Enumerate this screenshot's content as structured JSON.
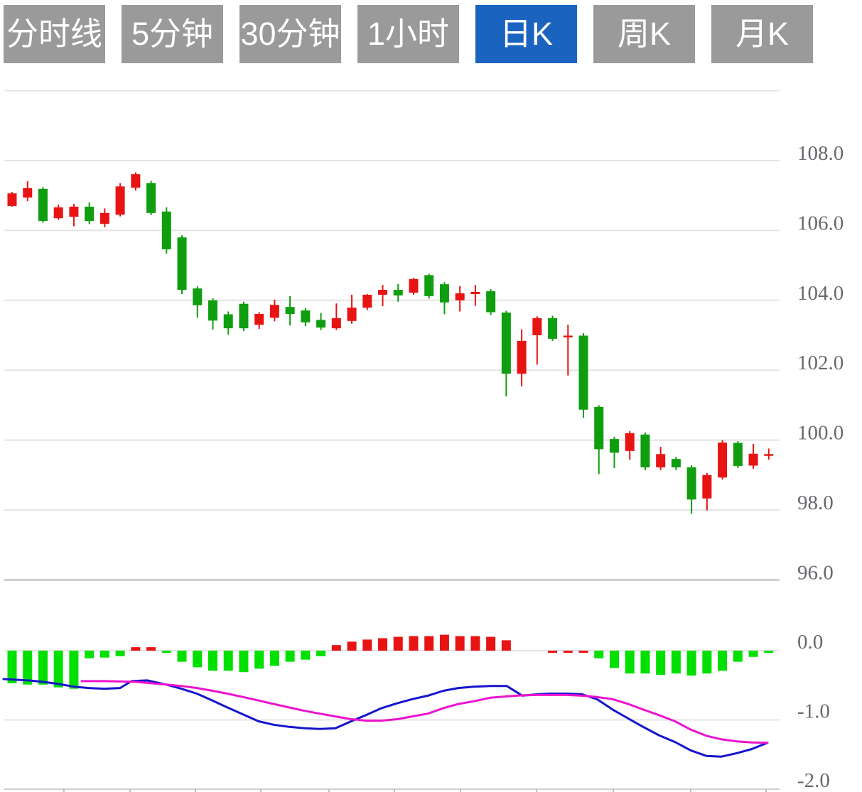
{
  "toolbar": {
    "inactive_color": "#9a9a9a",
    "active_color": "#1a64c0",
    "text_color": "#ffffff",
    "buttons": [
      {
        "label": "分时线",
        "active": false
      },
      {
        "label": "5分钟",
        "active": false
      },
      {
        "label": "30分钟",
        "active": false
      },
      {
        "label": "1小时",
        "active": false
      },
      {
        "label": "日K",
        "active": true
      },
      {
        "label": "周K",
        "active": false
      },
      {
        "label": "月K",
        "active": false
      }
    ]
  },
  "chart_data": {
    "type": "candlestick+macd",
    "legend_position": "none",
    "grid": true,
    "colors": {
      "up_red": "#e81414",
      "down_green": "#0f9e0f",
      "macd_green": "#00e000",
      "macd_red": "#e81414",
      "dif_blue": "#1414cc",
      "dea_magenta": "#ec13cf",
      "grid": "#e4e4e4",
      "grid_strong": "#cfcfcf",
      "label": "#68686e"
    },
    "price_panel": {
      "ylim": [
        96.0,
        110.0
      ],
      "gridline_prices": [
        110,
        108,
        106,
        104,
        102,
        100,
        98,
        96
      ],
      "ylabels": [
        {
          "text": "108.0",
          "price": 108
        },
        {
          "text": "106.0",
          "price": 106
        },
        {
          "text": "104.0",
          "price": 104
        },
        {
          "text": "102.0",
          "price": 102
        },
        {
          "text": "100.0",
          "price": 100
        },
        {
          "text": "98.0",
          "price": 98
        },
        {
          "text": "96.0",
          "price": 96
        }
      ],
      "candles_ohlc": [
        [
          106.7,
          107.1,
          106.68,
          107.06
        ],
        [
          106.94,
          107.41,
          106.84,
          107.21
        ],
        [
          107.19,
          107.24,
          106.22,
          106.27
        ],
        [
          106.35,
          106.74,
          106.3,
          106.66
        ],
        [
          106.39,
          106.76,
          106.12,
          106.68
        ],
        [
          106.68,
          106.8,
          106.18,
          106.27
        ],
        [
          106.19,
          106.63,
          106.09,
          106.5
        ],
        [
          106.45,
          107.35,
          106.4,
          107.26
        ],
        [
          107.22,
          107.66,
          107.14,
          107.61
        ],
        [
          107.35,
          107.42,
          106.44,
          106.5
        ],
        [
          106.54,
          106.66,
          105.34,
          105.46
        ],
        [
          105.8,
          105.86,
          104.18,
          104.3
        ],
        [
          104.34,
          104.4,
          103.5,
          103.86
        ],
        [
          104.0,
          104.06,
          103.16,
          103.42
        ],
        [
          103.6,
          103.68,
          103.02,
          103.2
        ],
        [
          103.9,
          103.96,
          103.12,
          103.2
        ],
        [
          103.3,
          103.66,
          103.18,
          103.61
        ],
        [
          103.5,
          104.02,
          103.4,
          103.87
        ],
        [
          103.81,
          104.12,
          103.28,
          103.61
        ],
        [
          103.71,
          103.78,
          103.26,
          103.37
        ],
        [
          103.44,
          103.64,
          103.15,
          103.22
        ],
        [
          103.2,
          103.91,
          103.15,
          103.49
        ],
        [
          103.41,
          104.16,
          103.33,
          103.79
        ],
        [
          103.79,
          104.18,
          103.72,
          104.16
        ],
        [
          104.16,
          104.44,
          103.83,
          104.3
        ],
        [
          104.3,
          104.47,
          103.96,
          104.14
        ],
        [
          104.22,
          104.64,
          104.16,
          104.61
        ],
        [
          104.72,
          104.76,
          104.05,
          104.12
        ],
        [
          104.46,
          104.52,
          103.6,
          103.94
        ],
        [
          104.0,
          104.41,
          103.68,
          104.2
        ],
        [
          104.18,
          104.44,
          103.84,
          104.24
        ],
        [
          104.26,
          104.32,
          103.58,
          103.66
        ],
        [
          103.65,
          103.7,
          101.25,
          101.9
        ],
        [
          101.9,
          103.17,
          101.54,
          102.84
        ],
        [
          103.0,
          103.54,
          102.16,
          103.49
        ],
        [
          103.49,
          103.56,
          102.84,
          102.9
        ],
        [
          102.94,
          103.3,
          101.85,
          102.99
        ],
        [
          102.99,
          103.06,
          100.64,
          100.87
        ],
        [
          100.95,
          101.0,
          99.03,
          99.74
        ],
        [
          100.03,
          100.1,
          99.2,
          99.64
        ],
        [
          99.69,
          100.26,
          99.44,
          100.2
        ],
        [
          100.16,
          100.22,
          99.14,
          99.22
        ],
        [
          99.22,
          99.81,
          99.14,
          99.6
        ],
        [
          99.46,
          99.52,
          99.14,
          99.22
        ],
        [
          99.22,
          99.28,
          97.89,
          98.3
        ],
        [
          98.33,
          99.06,
          97.99,
          99.0
        ],
        [
          98.93,
          100.0,
          98.87,
          99.93
        ],
        [
          99.92,
          99.97,
          99.2,
          99.26
        ],
        [
          99.27,
          99.89,
          99.18,
          99.61
        ],
        [
          99.55,
          99.76,
          99.44,
          99.6
        ]
      ]
    },
    "macd_panel": {
      "ylim": [
        -2.0,
        0.2
      ],
      "gridline_values": [
        0,
        -1,
        -2
      ],
      "ylabels": [
        {
          "text": "0.0",
          "value": 0
        },
        {
          "text": "-1.0",
          "value": -1
        },
        {
          "text": "-2.0",
          "value": -2
        }
      ],
      "histogram": [
        [
          -0.47,
          "g"
        ],
        [
          -0.49,
          "g"
        ],
        [
          -0.49,
          "g"
        ],
        [
          -0.53,
          "g"
        ],
        [
          -0.55,
          "g"
        ],
        [
          -0.11,
          "g"
        ],
        [
          -0.1,
          "g"
        ],
        [
          -0.08,
          "g"
        ],
        [
          0.05,
          "r"
        ],
        [
          0.05,
          "r"
        ],
        [
          -0.03,
          "g"
        ],
        [
          -0.16,
          "g"
        ],
        [
          -0.24,
          "g"
        ],
        [
          -0.29,
          "g"
        ],
        [
          -0.29,
          "g"
        ],
        [
          -0.31,
          "g"
        ],
        [
          -0.26,
          "g"
        ],
        [
          -0.22,
          "g"
        ],
        [
          -0.16,
          "g"
        ],
        [
          -0.13,
          "g"
        ],
        [
          -0.08,
          "g"
        ],
        [
          0.08,
          "r"
        ],
        [
          0.13,
          "r"
        ],
        [
          0.16,
          "r"
        ],
        [
          0.18,
          "r"
        ],
        [
          0.2,
          "r"
        ],
        [
          0.21,
          "r"
        ],
        [
          0.21,
          "r"
        ],
        [
          0.23,
          "r"
        ],
        [
          0.21,
          "r"
        ],
        [
          0.21,
          "r"
        ],
        [
          0.2,
          "r"
        ],
        [
          0.15,
          "r"
        ],
        null,
        null,
        [
          -0.02,
          "r"
        ],
        [
          -0.02,
          "r"
        ],
        [
          -0.02,
          "r"
        ],
        [
          -0.11,
          "g"
        ],
        [
          -0.25,
          "g"
        ],
        [
          -0.33,
          "g"
        ],
        [
          -0.33,
          "g"
        ],
        [
          -0.35,
          "g"
        ],
        [
          -0.33,
          "g"
        ],
        [
          -0.36,
          "g"
        ],
        [
          -0.33,
          "g"
        ],
        [
          -0.29,
          "g"
        ],
        [
          -0.16,
          "g"
        ],
        [
          -0.09,
          "g"
        ],
        [
          -0.02,
          "g"
        ]
      ],
      "dif_line": [
        [
          5,
          -0.41
        ],
        [
          40,
          -0.43
        ],
        [
          60,
          -0.45
        ],
        [
          82,
          -0.48
        ],
        [
          104,
          -0.52
        ],
        [
          125,
          -0.54
        ],
        [
          147,
          -0.55
        ],
        [
          169,
          -0.54
        ],
        [
          185,
          -0.44
        ],
        [
          207,
          -0.43
        ],
        [
          234,
          -0.49
        ],
        [
          255,
          -0.55
        ],
        [
          277,
          -0.62
        ],
        [
          299,
          -0.72
        ],
        [
          320,
          -0.82
        ],
        [
          342,
          -0.92
        ],
        [
          364,
          -1.02
        ],
        [
          385,
          -1.07
        ],
        [
          407,
          -1.1
        ],
        [
          429,
          -1.12
        ],
        [
          450,
          -1.13
        ],
        [
          472,
          -1.12
        ],
        [
          494,
          -1.02
        ],
        [
          515,
          -0.93
        ],
        [
          537,
          -0.83
        ],
        [
          559,
          -0.76
        ],
        [
          580,
          -0.7
        ],
        [
          602,
          -0.65
        ],
        [
          624,
          -0.58
        ],
        [
          645,
          -0.54
        ],
        [
          667,
          -0.52
        ],
        [
          690,
          -0.51
        ],
        [
          713,
          -0.51
        ],
        [
          735,
          -0.65
        ],
        [
          757,
          -0.63
        ],
        [
          775,
          -0.62
        ],
        [
          797,
          -0.62
        ],
        [
          819,
          -0.63
        ],
        [
          840,
          -0.7
        ],
        [
          862,
          -0.85
        ],
        [
          884,
          -0.98
        ],
        [
          905,
          -1.1
        ],
        [
          927,
          -1.22
        ],
        [
          950,
          -1.32
        ],
        [
          972,
          -1.44
        ],
        [
          994,
          -1.52
        ],
        [
          1015,
          -1.53
        ],
        [
          1037,
          -1.48
        ],
        [
          1058,
          -1.42
        ],
        [
          1080,
          -1.33
        ]
      ],
      "dea_line": [
        [
          115,
          -0.44
        ],
        [
          147,
          -0.44
        ],
        [
          190,
          -0.45
        ],
        [
          212,
          -0.47
        ],
        [
          234,
          -0.49
        ],
        [
          255,
          -0.51
        ],
        [
          277,
          -0.54
        ],
        [
          299,
          -0.58
        ],
        [
          320,
          -0.62
        ],
        [
          342,
          -0.67
        ],
        [
          364,
          -0.72
        ],
        [
          385,
          -0.77
        ],
        [
          407,
          -0.82
        ],
        [
          429,
          -0.87
        ],
        [
          450,
          -0.91
        ],
        [
          472,
          -0.95
        ],
        [
          494,
          -0.99
        ],
        [
          515,
          -1.01
        ],
        [
          537,
          -1.01
        ],
        [
          559,
          -0.99
        ],
        [
          580,
          -0.95
        ],
        [
          602,
          -0.91
        ],
        [
          624,
          -0.83
        ],
        [
          645,
          -0.77
        ],
        [
          667,
          -0.73
        ],
        [
          690,
          -0.68
        ],
        [
          713,
          -0.66
        ],
        [
          735,
          -0.645
        ],
        [
          757,
          -0.64
        ],
        [
          775,
          -0.64
        ],
        [
          797,
          -0.64
        ],
        [
          819,
          -0.65
        ],
        [
          840,
          -0.67
        ],
        [
          862,
          -0.7
        ],
        [
          884,
          -0.77
        ],
        [
          905,
          -0.85
        ],
        [
          927,
          -0.93
        ],
        [
          950,
          -1.02
        ],
        [
          972,
          -1.14
        ],
        [
          994,
          -1.23
        ],
        [
          1015,
          -1.28
        ],
        [
          1037,
          -1.31
        ],
        [
          1058,
          -1.325
        ],
        [
          1080,
          -1.33
        ]
      ],
      "x_axis_ticks": [
        90,
        183,
        275,
        367,
        463,
        555,
        648,
        755,
        863,
        972,
        1078
      ]
    }
  }
}
